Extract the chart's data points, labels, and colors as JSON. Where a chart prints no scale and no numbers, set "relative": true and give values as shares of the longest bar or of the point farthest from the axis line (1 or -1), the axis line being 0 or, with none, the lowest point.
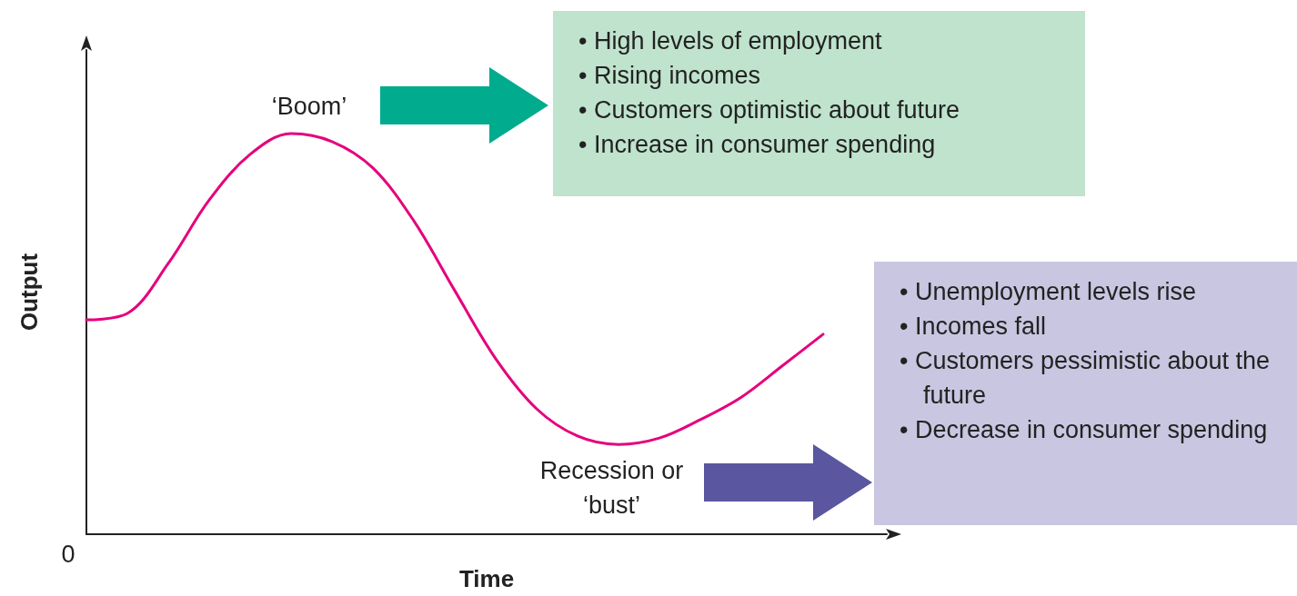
{
  "chart_data": {
    "type": "line",
    "relative": true,
    "xlabel": "Time",
    "ylabel": "Output",
    "categories": [
      null,
      null,
      null,
      null,
      null,
      null,
      null,
      null,
      null,
      null,
      null,
      null,
      null,
      null,
      null,
      null,
      null,
      null,
      null
    ],
    "series": [
      {
        "color": "#e5007d",
        "values": [
          0.535,
          0.551,
          0.676,
          0.834,
          0.948,
          1,
          0.98,
          0.914,
          0.782,
          0.608,
          0.438,
          0.313,
          0.245,
          0.224,
          0.24,
          0.286,
          0.342,
          0.42,
          0.499
        ]
      }
    ],
    "marker": "none",
    "line_style": "solid",
    "tick_labels": false,
    "annotations": [
      "‘Boom’",
      "• High levels of employment",
      "• Rising incomes",
      "• Customers optimistic about future",
      "• Increase in consumer spending",
      "Recession or ‘bust’",
      "• Unemployment levels rise",
      "• Incomes fall",
      "• Customers pessimistic about the future",
      "• Decrease in consumer spending",
      "0"
    ]
  }
}
